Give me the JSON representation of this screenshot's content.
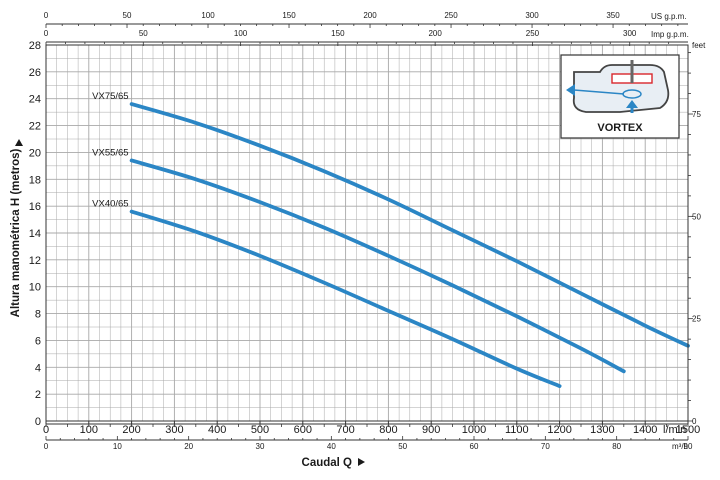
{
  "chart_data": {
    "type": "line",
    "title": "",
    "xlabel": "Caudal Q",
    "ylabel": "Altura manométrica H (metros)",
    "xlim": [
      0,
      1500
    ],
    "ylim": [
      0,
      28
    ],
    "grid": true,
    "x_unit": "l/min",
    "x_ticks": [
      "0",
      "100",
      "200",
      "300",
      "400",
      "500",
      "600",
      "700",
      "800",
      "900",
      "1000",
      "1100",
      "1200",
      "1300",
      "1400",
      "1500"
    ],
    "y_ticks": [
      "0",
      "2",
      "4",
      "6",
      "8",
      "10",
      "12",
      "14",
      "16",
      "18",
      "20",
      "22",
      "24",
      "26",
      "28"
    ],
    "axes": {
      "us_gpm": {
        "unit": "US g.p.m.",
        "ticks": [
          "0",
          "50",
          "100",
          "150",
          "200",
          "250",
          "300",
          "350"
        ]
      },
      "imp_gpm": {
        "unit": "Imp g.p.m.",
        "ticks": [
          "0",
          "50",
          "100",
          "150",
          "200",
          "250",
          "300"
        ]
      },
      "m3h": {
        "unit": "m³/h",
        "ticks": [
          "0",
          "10",
          "20",
          "30",
          "40",
          "50",
          "60",
          "70",
          "80",
          "90"
        ]
      },
      "feet": {
        "unit": "feet",
        "ticks": [
          "0",
          "25",
          "50",
          "75"
        ]
      }
    },
    "series": [
      {
        "name": "VX75/65",
        "x": [
          200,
          350,
          500,
          650,
          800,
          950,
          1100,
          1250,
          1400,
          1500
        ],
        "y": [
          23.6,
          22.2,
          20.5,
          18.6,
          16.5,
          14.2,
          11.9,
          9.5,
          7.1,
          5.6
        ]
      },
      {
        "name": "VX55/65",
        "x": [
          200,
          350,
          500,
          650,
          800,
          950,
          1100,
          1250,
          1350
        ],
        "y": [
          19.4,
          18.0,
          16.3,
          14.4,
          12.3,
          10.1,
          7.8,
          5.4,
          3.7
        ]
      },
      {
        "name": "VX40/65",
        "x": [
          200,
          350,
          500,
          650,
          800,
          950,
          1100,
          1200
        ],
        "y": [
          15.6,
          14.1,
          12.3,
          10.3,
          8.2,
          6.1,
          3.9,
          2.6
        ]
      }
    ],
    "inset_label": "VORTEX",
    "colors": {
      "line": "#2b86c5",
      "grid": "#a8a8a8",
      "axis": "#333333",
      "inset_red": "#d9262c"
    }
  }
}
